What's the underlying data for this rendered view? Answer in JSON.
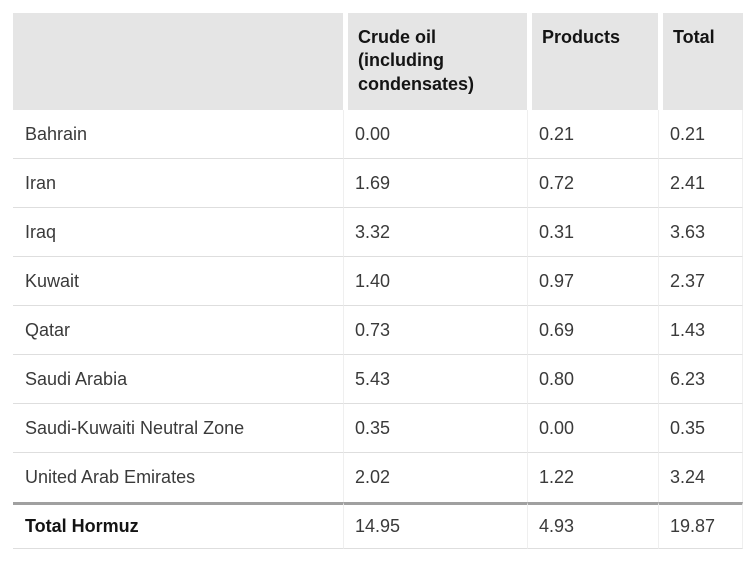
{
  "chart_data": {
    "type": "table",
    "title": "",
    "columns": [
      "",
      "Crude oil (including condensates)",
      "Products",
      "Total"
    ],
    "rows": [
      [
        "Bahrain",
        "0.00",
        "0.21",
        "0.21"
      ],
      [
        "Iran",
        "1.69",
        "0.72",
        "2.41"
      ],
      [
        "Iraq",
        "3.32",
        "0.31",
        "3.63"
      ],
      [
        "Kuwait",
        "1.40",
        "0.97",
        "2.37"
      ],
      [
        "Qatar",
        "0.73",
        "0.69",
        "1.43"
      ],
      [
        "Saudi Arabia",
        "5.43",
        "0.80",
        "6.23"
      ],
      [
        "Saudi-Kuwaiti Neutral Zone",
        "0.35",
        "0.00",
        "0.35"
      ],
      [
        "United Arab Emirates",
        "2.02",
        "1.22",
        "3.24"
      ]
    ],
    "total_row": [
      "Total Hormuz",
      "14.95",
      "4.93",
      "19.87"
    ]
  },
  "colors": {
    "header_background": "#e5e5e5",
    "row_divider": "#dedede",
    "column_divider": "#efefef",
    "total_rule": "#a0a0a0",
    "body_text": "#3a3a3a",
    "header_text": "#141414",
    "page_background": "#ffffff"
  }
}
